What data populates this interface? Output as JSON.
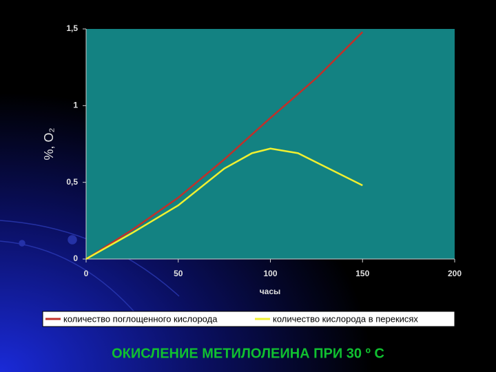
{
  "chart_data": {
    "type": "line",
    "title": "ОКИСЛЕНИЕ МЕТИЛОЛЕИНА ПРИ 30 º С",
    "xlabel": "часы",
    "ylabel": "%, O₂",
    "xlim": [
      0,
      200
    ],
    "xticks": [
      0,
      50,
      100,
      150,
      200
    ],
    "ylim": [
      0,
      1.5
    ],
    "yticks": [
      0,
      {
        "value": 0.5,
        "label": "0,5"
      },
      1,
      {
        "value": 1.5,
        "label": "1,5"
      }
    ],
    "series": [
      {
        "name": "количество поглощенного кислорода",
        "color": "#c0302a",
        "x": [
          0,
          25,
          50,
          75,
          100,
          125,
          150
        ],
        "values": [
          0,
          0.19,
          0.4,
          0.65,
          0.92,
          1.18,
          1.48
        ]
      },
      {
        "name": "количество кислорода в перекисях",
        "color": "#f0f030",
        "x": [
          0,
          25,
          50,
          75,
          90,
          100,
          115,
          125,
          150
        ],
        "values": [
          0,
          0.17,
          0.35,
          0.59,
          0.69,
          0.72,
          0.69,
          0.63,
          0.48
        ]
      }
    ]
  }
}
